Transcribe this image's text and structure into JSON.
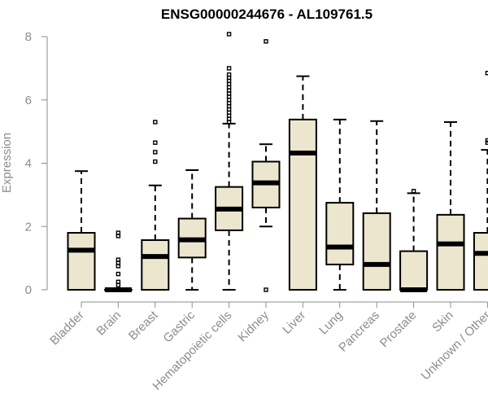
{
  "chart_data": {
    "type": "boxplot",
    "title": "ENSG00000244676 - AL109761.5",
    "ylabel": "Expression",
    "ylim": [
      0,
      8
    ],
    "yticks": [
      "0",
      "2",
      "4",
      "6",
      "8"
    ],
    "colors": {
      "box_fill": "#ede6cf",
      "box_stroke": "#000000",
      "axis": "#8c8c8c"
    },
    "categories": [
      "Bladder",
      "Brain",
      "Breast",
      "Gastric",
      "Hematopoietic cells",
      "Kidney",
      "Liver",
      "Lung",
      "Pancreas",
      "Prostate",
      "Skin",
      "Unknown / Other"
    ],
    "boxes": [
      {
        "category": "Bladder",
        "whislo": 0,
        "q1": 0,
        "median": 1.25,
        "q3": 1.8,
        "whishi": 3.75,
        "outliers": []
      },
      {
        "category": "Brain",
        "whislo": 0,
        "q1": 0,
        "median": 0,
        "q3": 0,
        "whishi": 0,
        "outliers": [
          0.15,
          0.25,
          0.5,
          0.75,
          0.85,
          0.95,
          1.7,
          1.8
        ]
      },
      {
        "category": "Breast",
        "whislo": 0,
        "q1": 0,
        "median": 1.05,
        "q3": 1.57,
        "whishi": 3.3,
        "outliers": [
          4.05,
          4.35,
          4.65,
          5.3
        ]
      },
      {
        "category": "Gastric",
        "whislo": 0,
        "q1": 1.02,
        "median": 1.58,
        "q3": 2.25,
        "whishi": 3.78,
        "outliers": []
      },
      {
        "category": "Hematopoietic cells",
        "whislo": 0,
        "q1": 1.88,
        "median": 2.55,
        "q3": 3.25,
        "whishi": 5.25,
        "outliers": [
          5.3,
          5.4,
          5.5,
          5.6,
          5.7,
          5.8,
          5.9,
          6.0,
          6.1,
          6.2,
          6.3,
          6.4,
          6.5,
          6.6,
          6.7,
          6.8,
          7.0,
          8.08
        ]
      },
      {
        "category": "Kidney",
        "whislo": 2.0,
        "q1": 2.6,
        "median": 3.38,
        "q3": 4.05,
        "whishi": 4.6,
        "outliers": [
          0,
          7.85
        ]
      },
      {
        "category": "Liver",
        "whislo": 0,
        "q1": 0,
        "median": 4.32,
        "q3": 5.38,
        "whishi": 6.75,
        "outliers": []
      },
      {
        "category": "Lung",
        "whislo": 0,
        "q1": 0.8,
        "median": 1.35,
        "q3": 2.75,
        "whishi": 5.38,
        "outliers": []
      },
      {
        "category": "Pancreas",
        "whislo": 0,
        "q1": 0,
        "median": 0.8,
        "q3": 2.42,
        "whishi": 5.33,
        "outliers": []
      },
      {
        "category": "Prostate",
        "whislo": 0,
        "q1": 0,
        "median": 0,
        "q3": 1.22,
        "whishi": 3.05,
        "outliers": [
          3.12
        ]
      },
      {
        "category": "Skin",
        "whislo": 0,
        "q1": 0,
        "median": 1.45,
        "q3": 2.37,
        "whishi": 5.3,
        "outliers": []
      },
      {
        "category": "Unknown / Other",
        "whislo": 0,
        "q1": 0,
        "median": 1.15,
        "q3": 1.8,
        "whishi": 4.42,
        "outliers": [
          4.65,
          4.72,
          6.85
        ]
      }
    ]
  }
}
